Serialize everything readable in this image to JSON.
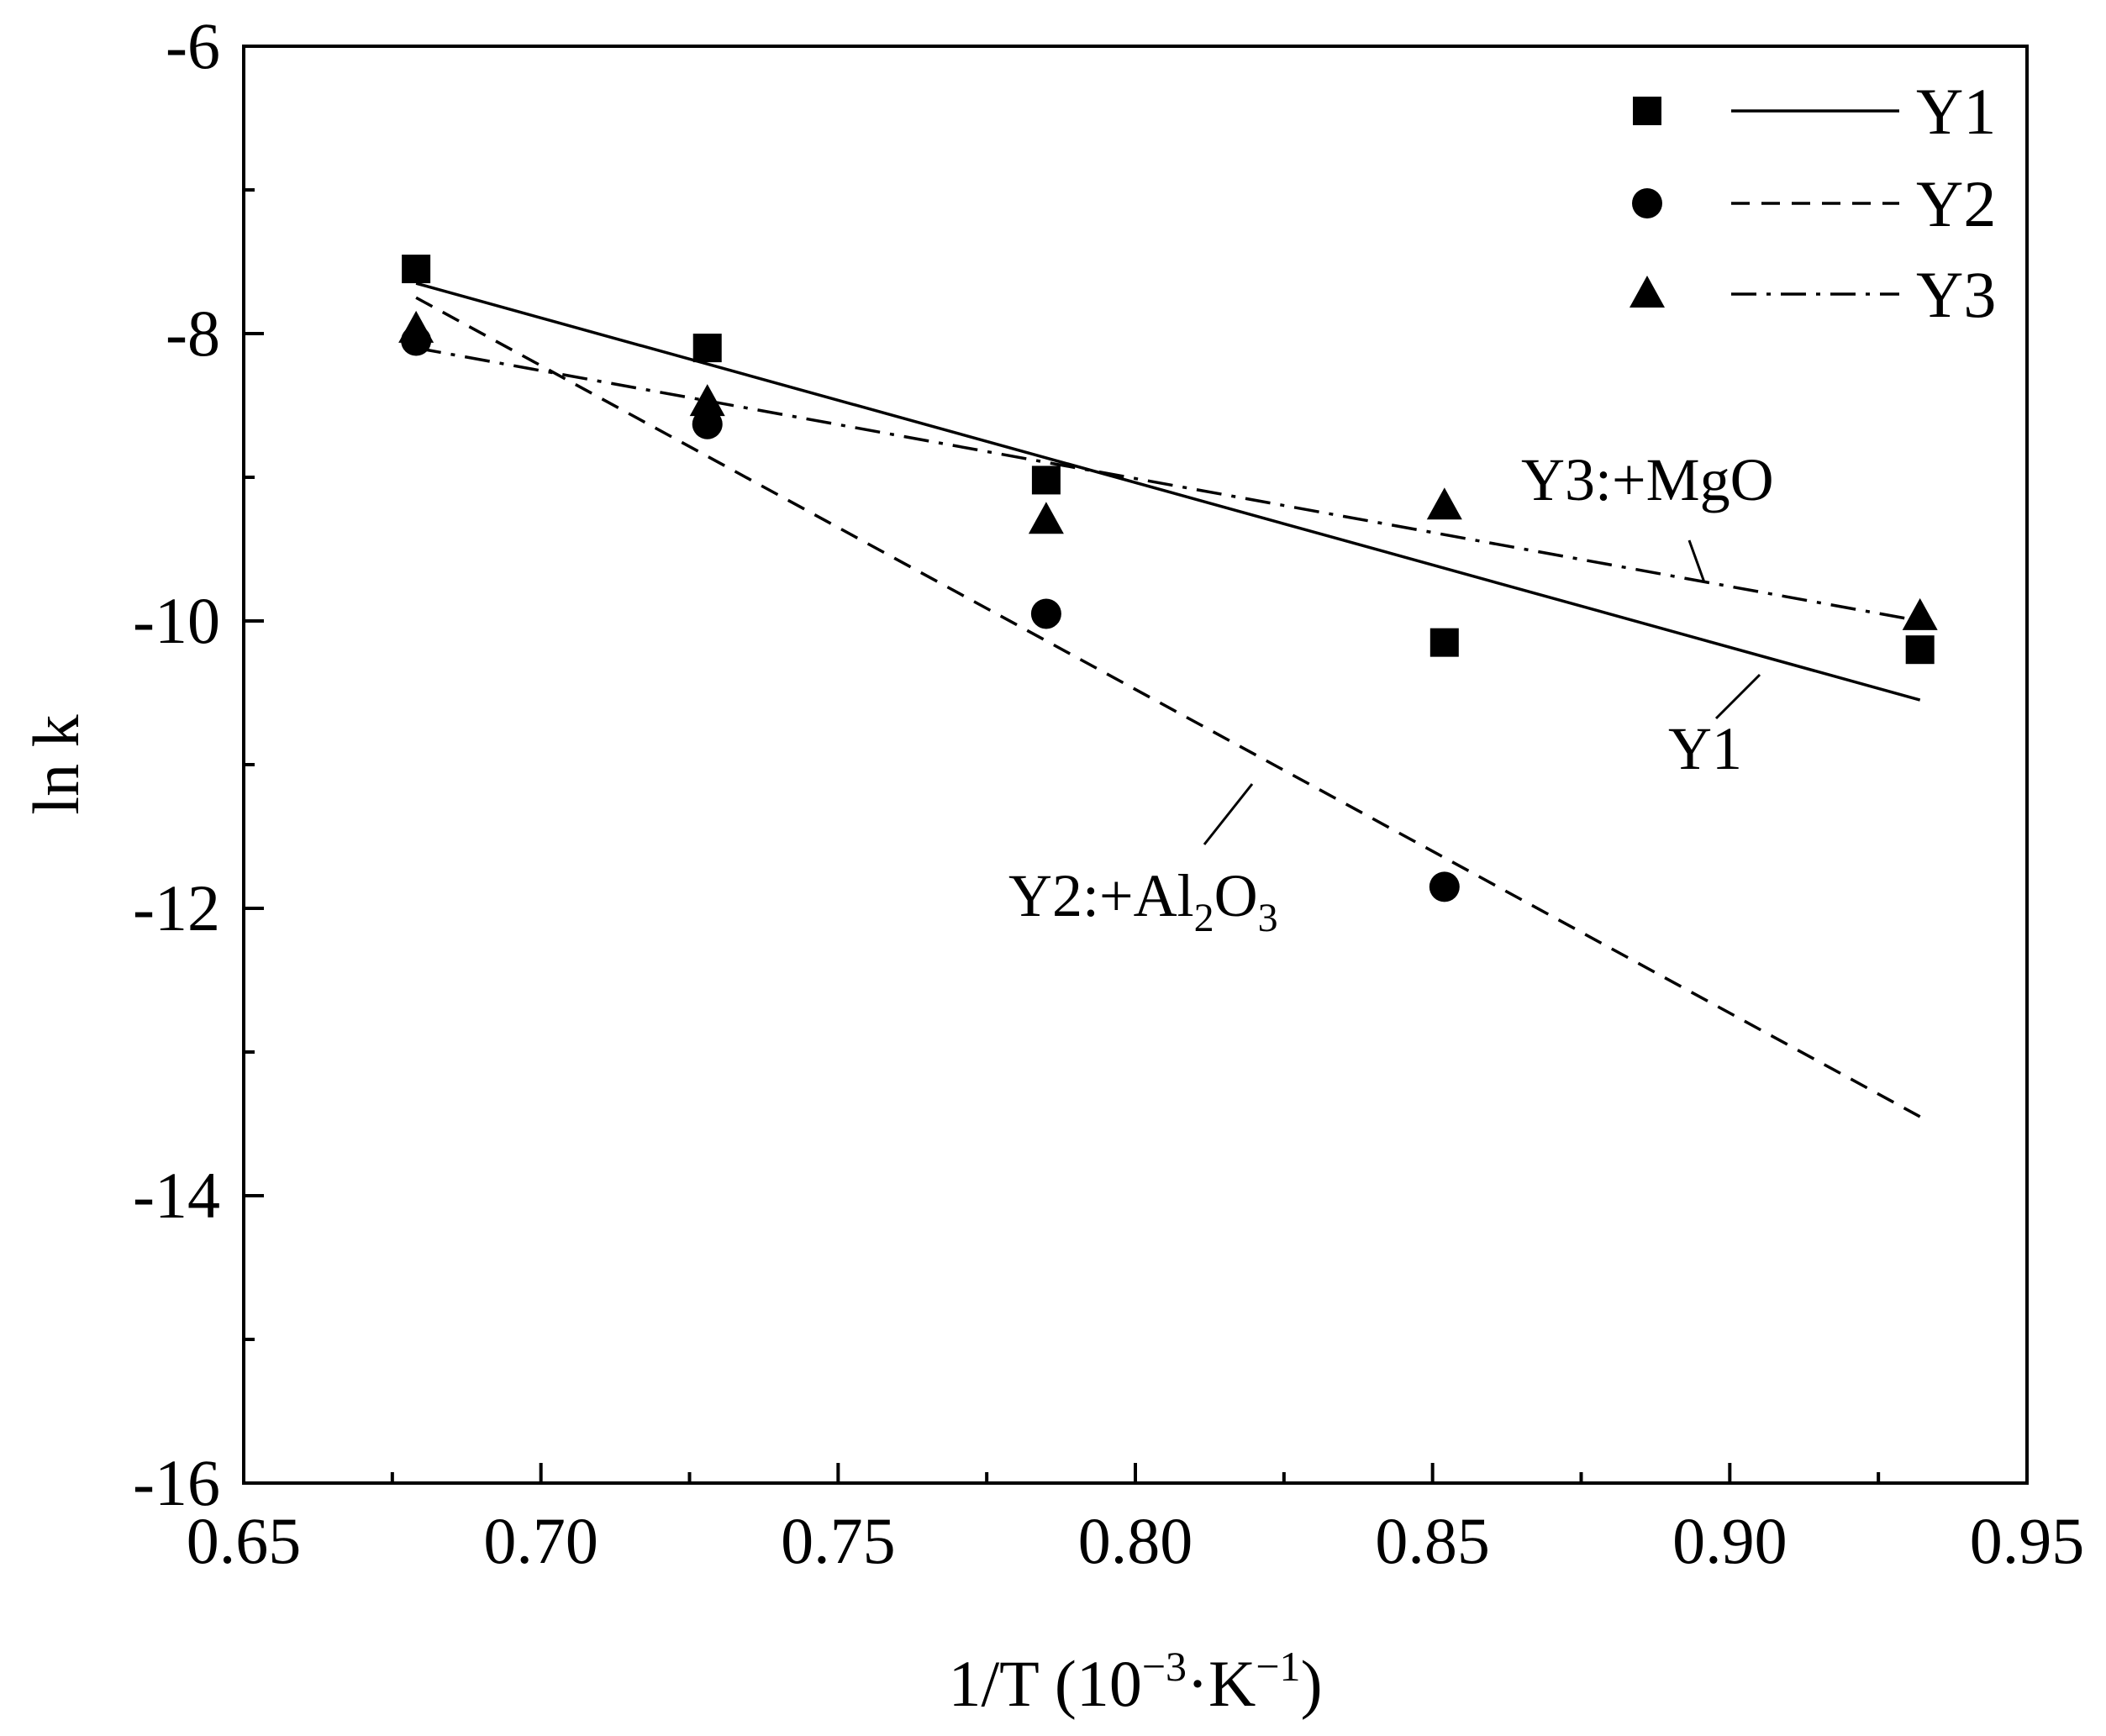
{
  "chart_data": {
    "type": "scatter",
    "title": "",
    "xlabel": "1/T (10",
    "xlabel_sup1": "−3",
    "xlabel_mid": "·K",
    "xlabel_sup2": "−1",
    "xlabel_end": ")",
    "ylabel": "ln k",
    "xlim": [
      0.65,
      0.95
    ],
    "ylim": [
      -16,
      -6
    ],
    "x_ticks": [
      0.65,
      0.7,
      0.75,
      0.8,
      0.85,
      0.9,
      0.95
    ],
    "x_tick_labels": [
      "0.65",
      "0.70",
      "0.75",
      "0.80",
      "0.85",
      "0.90",
      "0.95"
    ],
    "y_ticks": [
      -6,
      -8,
      -10,
      -12,
      -14,
      -16
    ],
    "y_tick_labels": [
      "-6",
      "-8",
      "-10",
      "-12",
      "-14",
      "-16"
    ],
    "grid": false,
    "legend_position": "top-right",
    "series": [
      {
        "name": "Y1",
        "marker": "square",
        "line": "solid",
        "x": [
          0.679,
          0.728,
          0.785,
          0.852,
          0.932
        ],
        "y": [
          -7.55,
          -8.1,
          -9.02,
          -10.15,
          -10.2
        ],
        "fit": [
          [
            0.679,
            -7.65
          ],
          [
            0.932,
            -10.55
          ]
        ]
      },
      {
        "name": "Y2",
        "marker": "circle",
        "line": "dashed",
        "x": [
          0.679,
          0.728,
          0.785,
          0.852
        ],
        "y": [
          -8.05,
          -8.63,
          -9.95,
          -11.85
        ],
        "fit": [
          [
            0.679,
            -7.75
          ],
          [
            0.932,
            -13.45
          ]
        ]
      },
      {
        "name": "Y3",
        "marker": "triangle",
        "line": "dashdot",
        "x": [
          0.679,
          0.728,
          0.785,
          0.852,
          0.932
        ],
        "y": [
          -7.97,
          -8.48,
          -9.3,
          -9.2,
          -9.97
        ],
        "fit": [
          [
            0.679,
            -8.1
          ],
          [
            0.932,
            -10.0
          ]
        ]
      }
    ],
    "annotations": {
      "y3": "Y3:+MgO",
      "y1": "Y1",
      "y2_main": "Y2:+Al",
      "y2_sub1": "2",
      "y2_mid": "O",
      "y2_sub2": "3"
    }
  }
}
